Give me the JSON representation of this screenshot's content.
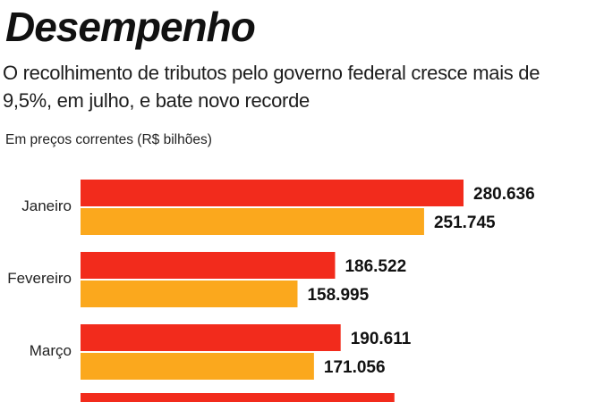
{
  "header": {
    "title": "Desempenho",
    "subtitle": "O recolhimento de tributos pelo governo federal cresce mais de 9,5%, em julho, e bate novo recorde",
    "units": "Em preços correntes (R$ bilhões)"
  },
  "colors": {
    "current": "#f22b1c",
    "previous": "#fba81d"
  },
  "chart_data": {
    "type": "bar",
    "orientation": "horizontal",
    "title": "Desempenho",
    "subtitle": "O recolhimento de tributos pelo governo federal cresce mais de 9,5%, em julho, e bate novo recorde",
    "ylabel": "Em preços correntes (R$ bilhões)",
    "categories": [
      "Janeiro",
      "Fevereiro",
      "Março"
    ],
    "series": [
      {
        "name": "current",
        "color": "#f22b1c",
        "values": [
          280.636,
          186.522,
          190.611
        ],
        "labels": [
          "280.636",
          "186.522",
          "190.611"
        ]
      },
      {
        "name": "previous",
        "color": "#fba81d",
        "values": [
          251.745,
          158.995,
          171.056
        ],
        "labels": [
          "251.745",
          "158.995",
          "171.056"
        ]
      }
    ],
    "partial_next": {
      "series": "current",
      "value": 230
    },
    "xlim": [
      0,
      290
    ]
  }
}
